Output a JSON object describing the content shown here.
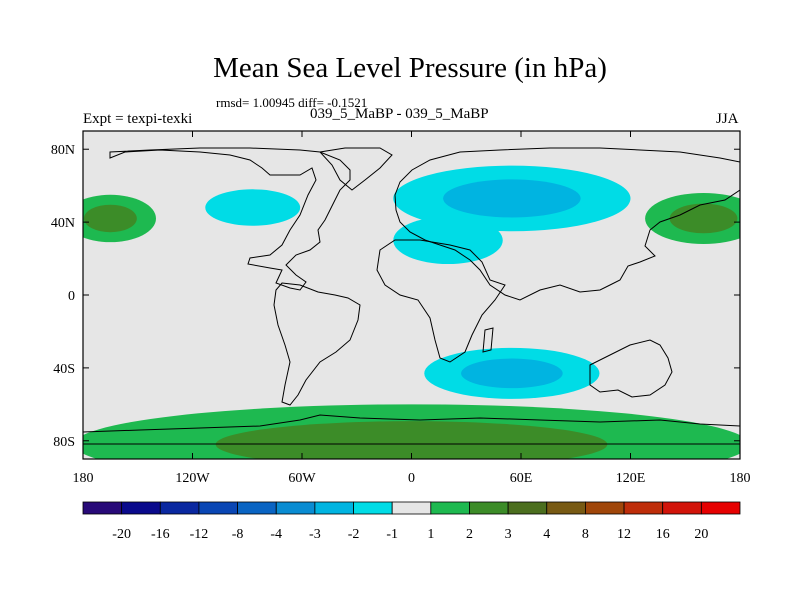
{
  "title": "Mean Sea Level Pressure (in hPa)",
  "stats": "rmsd= 1.00945 diff= -0.1521",
  "expt_label": "Expt = texpi-texki",
  "comparison": "039_5_MaBP - 039_5_MaBP",
  "season": "JJA",
  "chart_data": {
    "type": "heatmap",
    "title": "Mean Sea Level Pressure (in hPa)",
    "variable": "Mean sea level pressure difference",
    "units": "hPa",
    "xlabel": "",
    "ylabel": "",
    "xlim": [
      -180,
      180
    ],
    "ylim": [
      -90,
      90
    ],
    "x_ticks": [
      {
        "value": -180,
        "label": "180"
      },
      {
        "value": -120,
        "label": "120W"
      },
      {
        "value": -60,
        "label": "60W"
      },
      {
        "value": 0,
        "label": "0"
      },
      {
        "value": 60,
        "label": "60E"
      },
      {
        "value": 120,
        "label": "120E"
      },
      {
        "value": 180,
        "label": "180"
      }
    ],
    "y_ticks": [
      {
        "value": 80,
        "label": "80N"
      },
      {
        "value": 40,
        "label": "40N"
      },
      {
        "value": 0,
        "label": "0"
      },
      {
        "value": -40,
        "label": "40S"
      },
      {
        "value": -80,
        "label": "80S"
      }
    ],
    "colorbar": {
      "levels": [
        {
          "label": "-20",
          "color": "#280a78"
        },
        {
          "label": "-16",
          "color": "#0a0a8c"
        },
        {
          "label": "-12",
          "color": "#0a28a0"
        },
        {
          "label": "-8",
          "color": "#0a46b4"
        },
        {
          "label": "-4",
          "color": "#0a64c3"
        },
        {
          "label": "-3",
          "color": "#0a8cd2"
        },
        {
          "label": "-2",
          "color": "#00b4e1"
        },
        {
          "label": "-1",
          "color": "#00dce6"
        },
        {
          "label": "1",
          "color": "#e6e6e6"
        },
        {
          "label": "2",
          "color": "#1eb950"
        },
        {
          "label": "3",
          "color": "#3c8c28"
        },
        {
          "label": "4",
          "color": "#4b6e1e"
        },
        {
          "label": "8",
          "color": "#785a14"
        },
        {
          "label": "12",
          "color": "#a0460a"
        },
        {
          "label": "16",
          "color": "#be2d0a"
        },
        {
          "label": "20",
          "color": "#d2140a"
        }
      ],
      "end_color": "#e60000"
    },
    "background_color": "#e6e6e6",
    "anomalies": [
      {
        "name": "north-pacific-west-high",
        "lon": -165,
        "lat": 42,
        "lon_radius": 25,
        "lat_radius": 13,
        "levels": [
          2,
          3
        ]
      },
      {
        "name": "north-pacific-east-high",
        "lon": 160,
        "lat": 42,
        "lon_radius": 32,
        "lat_radius": 14,
        "levels": [
          2,
          3
        ]
      },
      {
        "name": "north-america-low",
        "lon": -87,
        "lat": 48,
        "lon_radius": 26,
        "lat_radius": 10,
        "levels": [
          -1
        ]
      },
      {
        "name": "eurasia-low",
        "lon": 55,
        "lat": 53,
        "lon_radius": 65,
        "lat_radius": 18,
        "levels": [
          -1,
          -2
        ]
      },
      {
        "name": "north-africa-low",
        "lon": 20,
        "lat": 30,
        "lon_radius": 30,
        "lat_radius": 13,
        "levels": [
          -1
        ]
      },
      {
        "name": "south-indian-ocean-low",
        "lon": 55,
        "lat": -43,
        "lon_radius": 48,
        "lat_radius": 14,
        "levels": [
          -1,
          -2
        ]
      },
      {
        "name": "antarctic-high",
        "lon": 0,
        "lat": -82,
        "lon_radius": 185,
        "lat_radius": 22,
        "levels": [
          2,
          3
        ]
      }
    ]
  }
}
